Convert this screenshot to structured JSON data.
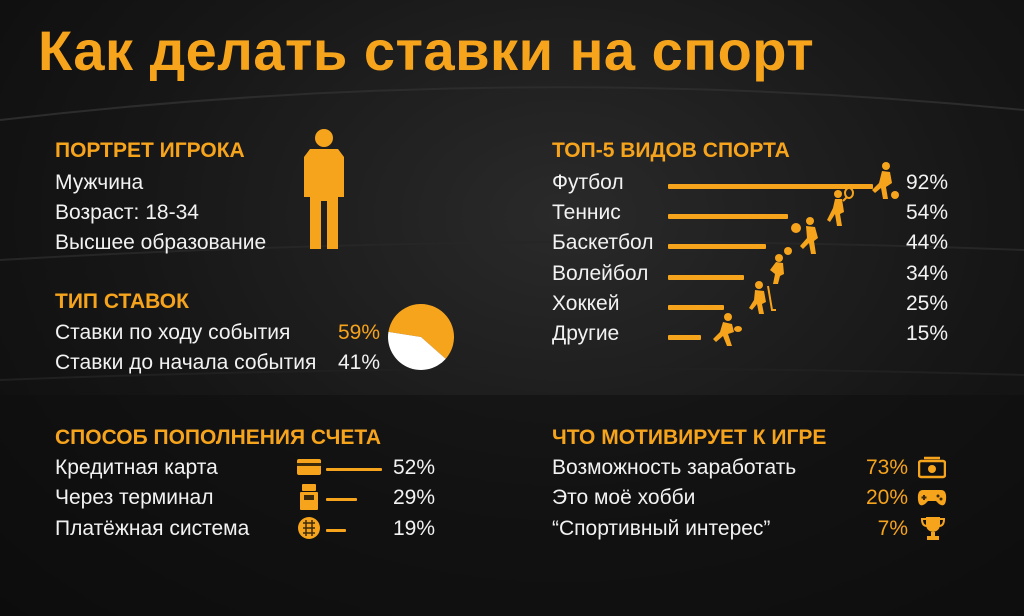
{
  "title": "Как делать ставки на спорт",
  "colors": {
    "accent": "#f7a41d",
    "text": "#f2f2f2",
    "background": "#161616"
  },
  "portrait": {
    "heading": "ПОРТРЕТ ИГРОКА",
    "lines": [
      "Мужчина",
      "Возраст: 18-34",
      "Высшее образование"
    ],
    "icon": "man-silhouette-icon"
  },
  "bet_type": {
    "heading": "ТИП СТАВОК",
    "items": [
      {
        "label": "Ставки по ходу события",
        "value": "59%"
      },
      {
        "label": "Ставки до начала события",
        "value": "41%"
      }
    ]
  },
  "top_sports": {
    "heading": "ТОП-5 ВИДОВ СПОРТА",
    "items": [
      {
        "label": "Футбол",
        "value": "92%",
        "icon": "football-player-icon"
      },
      {
        "label": "Теннис",
        "value": "54%",
        "icon": "tennis-player-icon"
      },
      {
        "label": "Баскетбол",
        "value": "44%",
        "icon": "basketball-player-icon"
      },
      {
        "label": "Волейбол",
        "value": "34%",
        "icon": "volleyball-player-icon"
      },
      {
        "label": "Хоккей",
        "value": "25%",
        "icon": "hockey-player-icon"
      },
      {
        "label": "Другие",
        "value": "15%",
        "icon": "runner-icon"
      }
    ]
  },
  "deposit": {
    "heading": "СПОСОБ ПОПОЛНЕНИЯ СЧЕТА",
    "items": [
      {
        "label": "Кредитная карта",
        "value": "52%",
        "icon": "credit-card-icon"
      },
      {
        "label": "Через терминал",
        "value": "29%",
        "icon": "terminal-icon"
      },
      {
        "label": "Платёжная система",
        "value": "19%",
        "icon": "payment-system-icon"
      }
    ]
  },
  "motivation": {
    "heading": "ЧТО МОТИВИРУЕТ К ИГРЕ",
    "items": [
      {
        "label": "Возможность заработать",
        "value": "73%",
        "icon": "money-icon"
      },
      {
        "label": "Это моё хобби",
        "value": "20%",
        "icon": "gamepad-icon"
      },
      {
        "label": "“Спортивный интерес”",
        "value": "7%",
        "icon": "trophy-icon"
      }
    ]
  },
  "chart_data": [
    {
      "type": "bar",
      "title": "ТОП-5 ВИДОВ СПОРТА",
      "categories": [
        "Футбол",
        "Теннис",
        "Баскетбол",
        "Волейбол",
        "Хоккей",
        "Другие"
      ],
      "values": [
        92,
        54,
        44,
        34,
        25,
        15
      ]
    },
    {
      "type": "pie",
      "title": "ТИП СТАВОК",
      "categories": [
        "Ставки по ходу события",
        "Ставки до начала события"
      ],
      "values": [
        59,
        41
      ]
    },
    {
      "type": "bar",
      "title": "СПОСОБ ПОПОЛНЕНИЯ СЧЕТА",
      "categories": [
        "Кредитная карта",
        "Через терминал",
        "Платёжная система"
      ],
      "values": [
        52,
        29,
        19
      ]
    },
    {
      "type": "bar",
      "title": "ЧТО МОТИВИРУЕТ К ИГРЕ",
      "categories": [
        "Возможность заработать",
        "Это моё хобби",
        "“Спортивный интерес”"
      ],
      "values": [
        73,
        20,
        7
      ]
    }
  ]
}
